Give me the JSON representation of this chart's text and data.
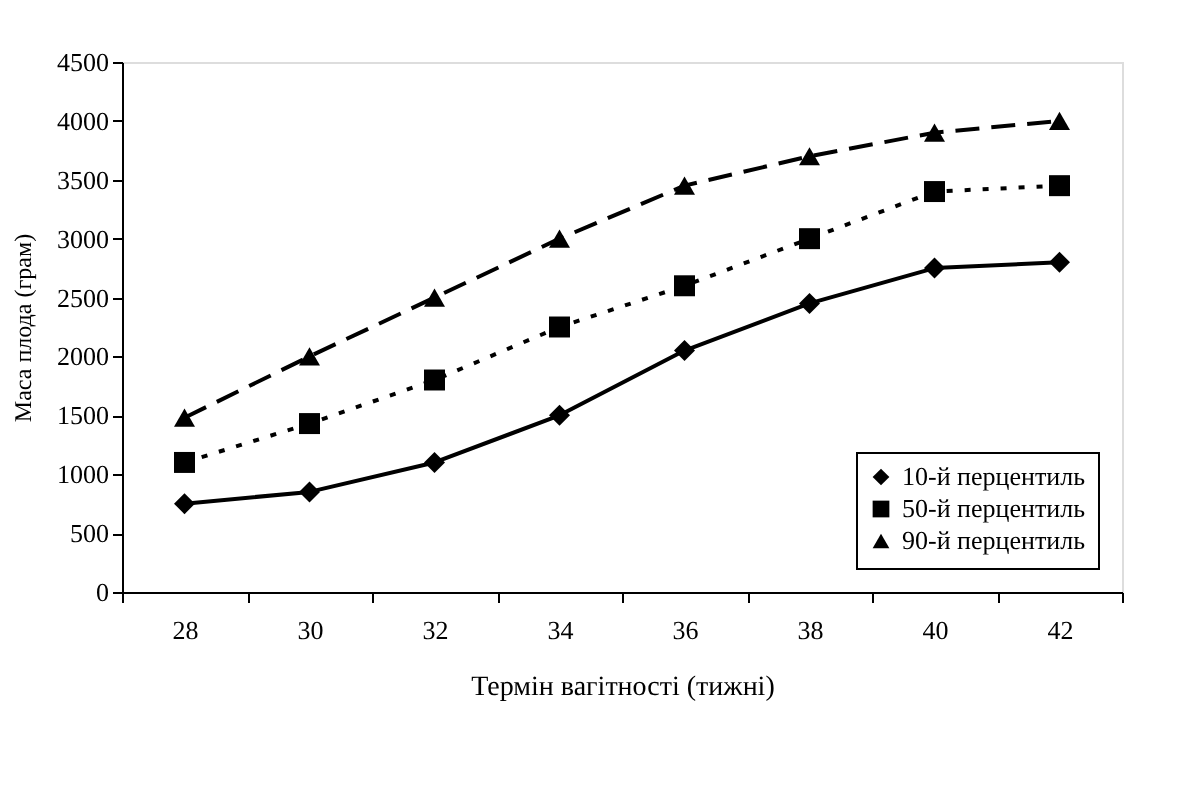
{
  "chart_data": {
    "type": "line",
    "xlabel": "Термін вагітності (тижні)",
    "ylabel": "Маса плода (грам)",
    "categories": [
      "28",
      "30",
      "32",
      "34",
      "36",
      "38",
      "40",
      "42"
    ],
    "series": [
      {
        "name": "10-й перцентиль",
        "color": "#000000",
        "marker": "diamond",
        "line_style": "solid",
        "values": [
          750,
          850,
          1100,
          1500,
          2050,
          2450,
          2750,
          2800
        ]
      },
      {
        "name": "50-й перцентиль",
        "color": "#000000",
        "marker": "square",
        "line_style": "dotted",
        "values": [
          1100,
          1430,
          1800,
          2250,
          2600,
          3000,
          3400,
          3450
        ]
      },
      {
        "name": "90-й перцентиль",
        "color": "#000000",
        "marker": "triangle",
        "line_style": "dashed",
        "values": [
          1480,
          2000,
          2500,
          3000,
          3450,
          3700,
          3900,
          4000
        ]
      }
    ],
    "ylim": [
      0,
      4500
    ],
    "yticks": [
      0,
      500,
      1000,
      1500,
      2000,
      2500,
      3000,
      3500,
      4000,
      4500
    ],
    "grid": false,
    "legend": "bottom right"
  }
}
